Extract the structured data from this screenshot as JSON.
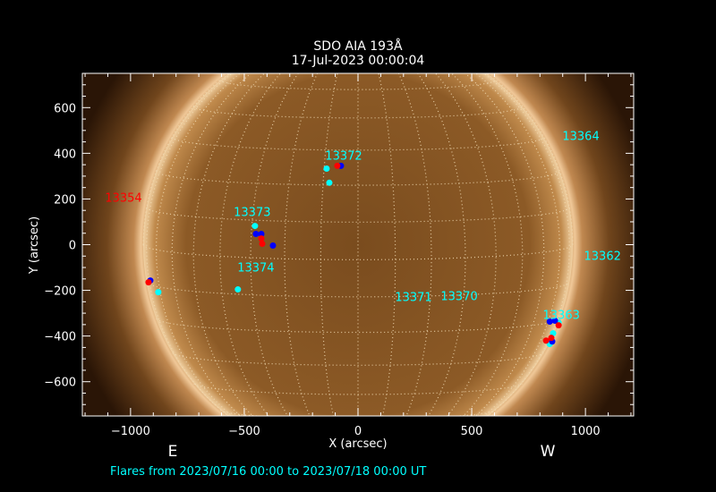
{
  "title": {
    "line1": "SDO AIA 193Å",
    "line2": "17-Jul-2023 00:00:04"
  },
  "footer": "Flares from 2023/07/16 00:00 to 2023/07/18 00:00 UT",
  "colors": {
    "background": "#000000",
    "axes": "#ffffff",
    "region_label": "#00ffff",
    "region_label_alt": "#ff0000",
    "grid": "#f2dcb4",
    "flare_cyan": "#00ffff",
    "flare_blue": "#0000ff",
    "flare_red": "#ff0000"
  },
  "chart_data": {
    "type": "scatter",
    "image": "solar disk, AIA 193Å, heliographic grid 10°",
    "xlabel": "X (arcsec)",
    "ylabel": "Y (arcsec)",
    "xlim": [
      -1212,
      1212
    ],
    "ylim": [
      -750,
      750
    ],
    "xticks": [
      "-1000",
      "-500",
      "0",
      "500",
      "1000"
    ],
    "xtick_values": [
      -1000,
      -500,
      0,
      500,
      1000
    ],
    "yticks": [
      "-600",
      "-400",
      "-200",
      "0",
      "200",
      "400",
      "600"
    ],
    "ytick_values": [
      -600,
      -400,
      -200,
      0,
      200,
      400,
      600
    ],
    "solar_radius_arcsec": 944,
    "direction_labels": {
      "east": "E",
      "west": "W"
    },
    "regions": [
      {
        "label": "13372",
        "x": -63,
        "y": 392,
        "color": "#00ffff"
      },
      {
        "label": "13354",
        "x": -1031,
        "y": 208,
        "color": "#ff0000"
      },
      {
        "label": "13364",
        "x": 980,
        "y": 478,
        "color": "#00ffff"
      },
      {
        "label": "13373",
        "x": -465,
        "y": 145,
        "color": "#00ffff"
      },
      {
        "label": "13374",
        "x": -449,
        "y": -98,
        "color": "#00ffff"
      },
      {
        "label": "13362",
        "x": 1075,
        "y": -47,
        "color": "#00ffff"
      },
      {
        "label": "13371",
        "x": 244,
        "y": -227,
        "color": "#00ffff"
      },
      {
        "label": "13370",
        "x": 445,
        "y": -224,
        "color": "#00ffff"
      },
      {
        "label": "13363",
        "x": 894,
        "y": -306,
        "color": "#00ffff"
      }
    ],
    "flares": [
      {
        "x": -138,
        "y": 333,
        "color": "#00ffff"
      },
      {
        "x": -126,
        "y": 271,
        "color": "#00ffff"
      },
      {
        "x": -453,
        "y": 82,
        "color": "#00ffff"
      },
      {
        "x": -528,
        "y": -196,
        "color": "#00ffff"
      },
      {
        "x": -878,
        "y": -208,
        "color": "#00ffff"
      },
      {
        "x": 882,
        "y": -341,
        "color": "#00ffff"
      },
      {
        "x": 858,
        "y": -388,
        "color": "#00ffff"
      },
      {
        "x": 843,
        "y": -435,
        "color": "#00ffff"
      },
      {
        "x": -75,
        "y": 345,
        "color": "#0000ff"
      },
      {
        "x": -449,
        "y": 47,
        "color": "#0000ff"
      },
      {
        "x": -425,
        "y": 47,
        "color": "#0000ff"
      },
      {
        "x": -374,
        "y": -4,
        "color": "#0000ff"
      },
      {
        "x": -913,
        "y": -157,
        "color": "#0000ff"
      },
      {
        "x": 843,
        "y": -337,
        "color": "#0000ff"
      },
      {
        "x": 866,
        "y": -333,
        "color": "#0000ff"
      },
      {
        "x": 854,
        "y": -424,
        "color": "#0000ff"
      },
      {
        "x": -91,
        "y": 345,
        "color": "#ff0000"
      },
      {
        "x": -425,
        "y": 27,
        "color": "#ff0000"
      },
      {
        "x": -421,
        "y": 4,
        "color": "#ff0000"
      },
      {
        "x": -921,
        "y": -165,
        "color": "#ff0000"
      },
      {
        "x": 882,
        "y": -353,
        "color": "#ff0000"
      },
      {
        "x": 850,
        "y": -408,
        "color": "#ff0000"
      },
      {
        "x": 827,
        "y": -420,
        "color": "#ff0000"
      }
    ]
  }
}
